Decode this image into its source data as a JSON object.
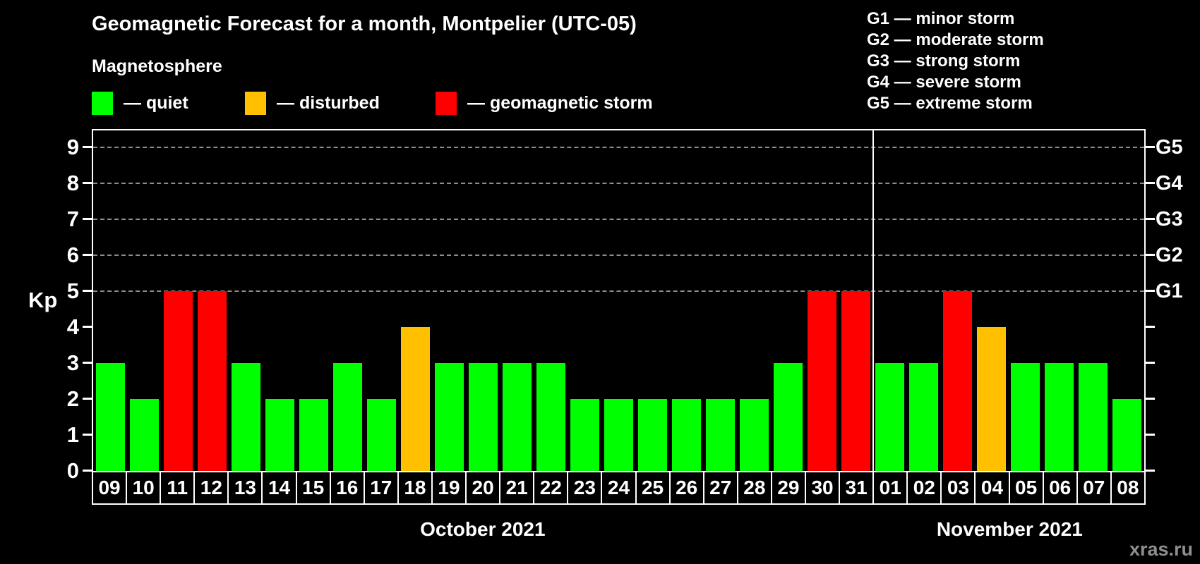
{
  "title": "Geomagnetic Forecast for a month, Montpelier (UTC-05)",
  "subtitle": "Magnetosphere",
  "legend": {
    "items": [
      {
        "state": "quiet",
        "label": "— quiet",
        "color": "#00ff00"
      },
      {
        "state": "disturbed",
        "label": "— disturbed",
        "color": "#ffc000"
      },
      {
        "state": "storm",
        "label": "— geomagnetic storm",
        "color": "#ff0000"
      }
    ]
  },
  "g_legend": [
    "G1 — minor storm",
    "G2 — moderate storm",
    "G3 — strong storm",
    "G4 — severe storm",
    "G5 — extreme storm"
  ],
  "watermark": "xras.ru",
  "chart_data": {
    "type": "bar",
    "title": "Geomagnetic Forecast for a month, Montpelier (UTC-05)",
    "xlabel": "",
    "ylabel": "Kp",
    "ylim": [
      0,
      9.5
    ],
    "yticks": [
      0,
      1,
      2,
      3,
      4,
      5,
      6,
      7,
      8,
      9
    ],
    "grid_levels": [
      5,
      6,
      7,
      8,
      9
    ],
    "grid": "dashed",
    "legend_position": "top",
    "right_axis_labels": [
      {
        "kp": 5,
        "label": "G1"
      },
      {
        "kp": 6,
        "label": "G2"
      },
      {
        "kp": 7,
        "label": "G3"
      },
      {
        "kp": 8,
        "label": "G4"
      },
      {
        "kp": 9,
        "label": "G5"
      }
    ],
    "months": [
      {
        "label": "October 2021",
        "days": 23
      },
      {
        "label": "November 2021",
        "days": 8
      }
    ],
    "categories": [
      "09",
      "10",
      "11",
      "12",
      "13",
      "14",
      "15",
      "16",
      "17",
      "18",
      "19",
      "20",
      "21",
      "22",
      "23",
      "24",
      "25",
      "26",
      "27",
      "28",
      "29",
      "30",
      "31",
      "01",
      "02",
      "03",
      "04",
      "05",
      "06",
      "07",
      "08"
    ],
    "values": [
      3,
      2,
      5,
      5,
      3,
      2,
      2,
      3,
      2,
      4,
      3,
      3,
      3,
      3,
      2,
      2,
      2,
      2,
      2,
      2,
      3,
      5,
      5,
      3,
      3,
      5,
      4,
      3,
      3,
      3,
      2
    ],
    "states": [
      "quiet",
      "quiet",
      "storm",
      "storm",
      "quiet",
      "quiet",
      "quiet",
      "quiet",
      "quiet",
      "disturbed",
      "quiet",
      "quiet",
      "quiet",
      "quiet",
      "quiet",
      "quiet",
      "quiet",
      "quiet",
      "quiet",
      "quiet",
      "quiet",
      "storm",
      "storm",
      "quiet",
      "quiet",
      "storm",
      "disturbed",
      "quiet",
      "quiet",
      "quiet",
      "quiet"
    ],
    "colors": {
      "quiet": "#00ff00",
      "disturbed": "#ffc000",
      "storm": "#ff0000"
    }
  }
}
